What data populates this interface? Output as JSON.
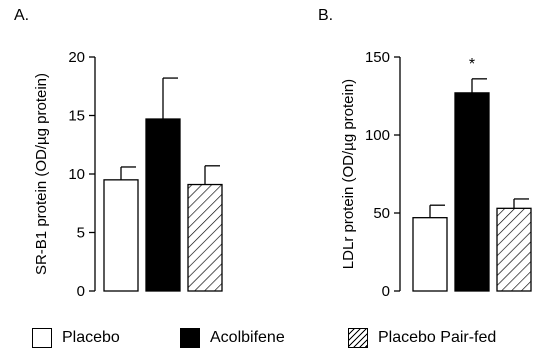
{
  "chart_data": [
    {
      "type": "bar",
      "panel_label": "A.",
      "ylabel": "SR-B1 protein (OD/µg protein)",
      "ylim": [
        0,
        20
      ],
      "yticks": [
        0,
        5,
        10,
        15,
        20
      ],
      "categories": [
        "Placebo",
        "Acolbifene",
        "Placebo Pair-fed"
      ],
      "values": [
        9.5,
        14.7,
        9.1
      ],
      "errors": [
        1.1,
        3.5,
        1.6
      ],
      "fills": [
        "white",
        "black",
        "hatched"
      ],
      "annotations": [
        "",
        "",
        ""
      ]
    },
    {
      "type": "bar",
      "panel_label": "B.",
      "ylabel": "LDLr protein (OD/µg protein)",
      "ylim": [
        0,
        150
      ],
      "yticks": [
        0,
        50,
        100,
        150
      ],
      "categories": [
        "Placebo",
        "Acolbifene",
        "Placebo Pair-fed"
      ],
      "values": [
        47,
        127,
        53
      ],
      "errors": [
        8,
        9,
        6
      ],
      "fills": [
        "white",
        "black",
        "hatched"
      ],
      "annotations": [
        "",
        "*",
        ""
      ]
    }
  ],
  "legend": [
    {
      "label": "Placebo",
      "fill": "white"
    },
    {
      "label": "Acolbifene",
      "fill": "black"
    },
    {
      "label": "Placebo Pair-fed",
      "fill": "hatched"
    }
  ]
}
